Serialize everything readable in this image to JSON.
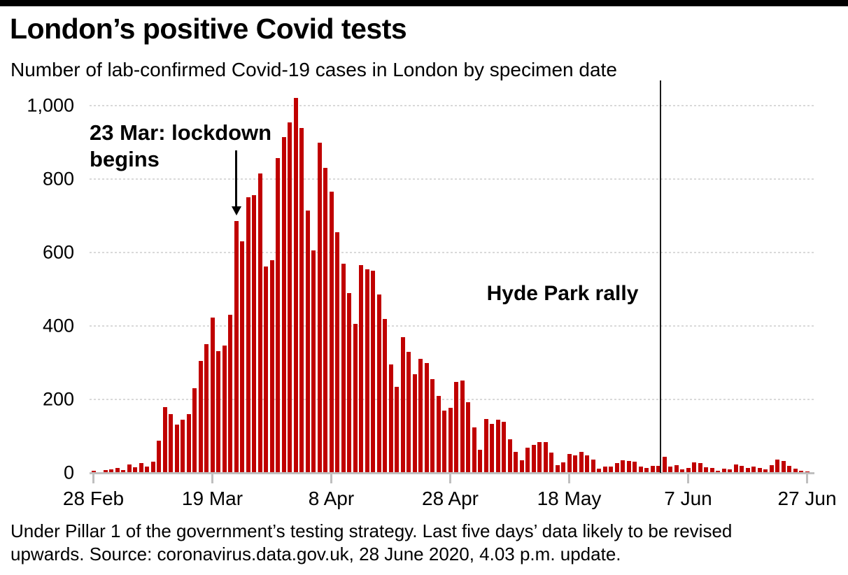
{
  "title": "London’s positive Covid tests",
  "subtitle": "Number of lab-confirmed Covid-19 cases in London by specimen date",
  "annotations": {
    "lockdown_label_line1": "23 Mar: lockdown",
    "lockdown_label_line2": "begins",
    "lockdown_target_date": "23 Mar",
    "hyde_park_label": "Hyde Park rally",
    "hyde_park_line_date": "2 Jun"
  },
  "footer": {
    "line1": "Under Pillar 1 of the government’s testing strategy. Last five days’ data likely to be revised",
    "line2": "upwards. Source: coronavirus.data.gov.uk, 28 June 2020, 4.03 p.m. update."
  },
  "colors": {
    "bar": "#c00000",
    "gridline": "#d9d9d9",
    "axis": "#bfbfbf",
    "annotation_line": "#1a1a1a",
    "text": "#000000",
    "top_bar": "#000000"
  },
  "chart_data": {
    "type": "bar",
    "title": "London’s positive Covid tests",
    "subtitle": "Number of lab-confirmed Covid-19 cases in London by specimen date",
    "xlabel": "",
    "ylabel": "",
    "grid": "horizontal-dotted",
    "legend": "none",
    "ylim": [
      0,
      1050
    ],
    "y_ticks": [
      0,
      200,
      400,
      600,
      800,
      1000
    ],
    "y_tick_labels": [
      "0",
      "200",
      "400",
      "600",
      "800",
      "1,000"
    ],
    "x_tick_labels": [
      "28 Feb",
      "19 Mar",
      "8 Apr",
      "28 Apr",
      "18 May",
      "7 Jun",
      "27 Jun"
    ],
    "x_tick_day_indices": [
      0,
      20,
      40,
      60,
      80,
      100,
      120
    ],
    "start_date": "28 Feb 2020",
    "end_date": "27 Jun 2020",
    "month_spans": [
      [
        "Feb",
        28,
        29
      ],
      [
        "Mar",
        1,
        31
      ],
      [
        "Apr",
        1,
        30
      ],
      [
        "May",
        1,
        31
      ],
      [
        "Jun",
        1,
        27
      ]
    ],
    "values": [
      5,
      2,
      8,
      10,
      14,
      8,
      22,
      15,
      26,
      18,
      30,
      88,
      180,
      160,
      132,
      145,
      160,
      230,
      305,
      350,
      423,
      332,
      347,
      430,
      685,
      630,
      750,
      757,
      815,
      562,
      580,
      858,
      915,
      955,
      1021,
      940,
      715,
      605,
      900,
      830,
      765,
      655,
      570,
      490,
      405,
      565,
      555,
      550,
      485,
      420,
      295,
      235,
      370,
      330,
      268,
      310,
      300,
      255,
      210,
      170,
      178,
      247,
      252,
      192,
      123,
      62,
      147,
      134,
      144,
      140,
      91,
      58,
      34,
      69,
      76,
      84,
      83,
      56,
      21,
      29,
      52,
      48,
      58,
      47,
      37,
      11,
      17,
      17,
      26,
      34,
      33,
      30,
      17,
      13,
      19,
      19,
      44,
      17,
      21,
      9,
      13,
      29,
      27,
      15,
      13,
      6,
      11,
      10,
      23,
      19,
      14,
      17,
      13,
      9,
      21,
      36,
      32,
      20,
      11,
      5,
      4
    ],
    "annotations": [
      {
        "type": "arrow-label",
        "text": "23 Mar: lockdown begins",
        "points_to_date": "23 Mar",
        "points_to_value": 685
      },
      {
        "type": "vertical-line-label",
        "text": "Hyde Park rally",
        "line_date": "2 Jun"
      }
    ]
  }
}
